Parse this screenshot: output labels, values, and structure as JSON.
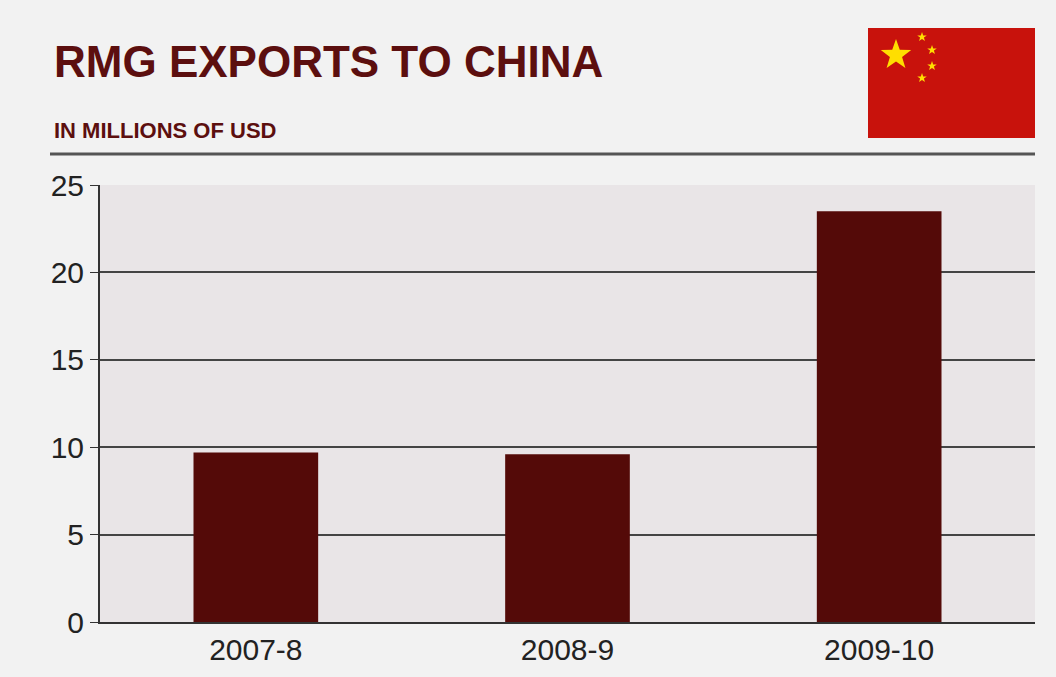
{
  "chart_data": {
    "type": "bar",
    "title": "RMG EXPORTS TO CHINA",
    "subtitle": "IN MILLIONS OF USD",
    "categories": [
      "2007-8",
      "2008-9",
      "2009-10"
    ],
    "values": [
      9.7,
      9.6,
      23.5
    ],
    "color": "#540a08",
    "ylim": [
      0,
      25
    ],
    "yticks": [
      0,
      5,
      10,
      15,
      20,
      25
    ],
    "grid": true
  }
}
